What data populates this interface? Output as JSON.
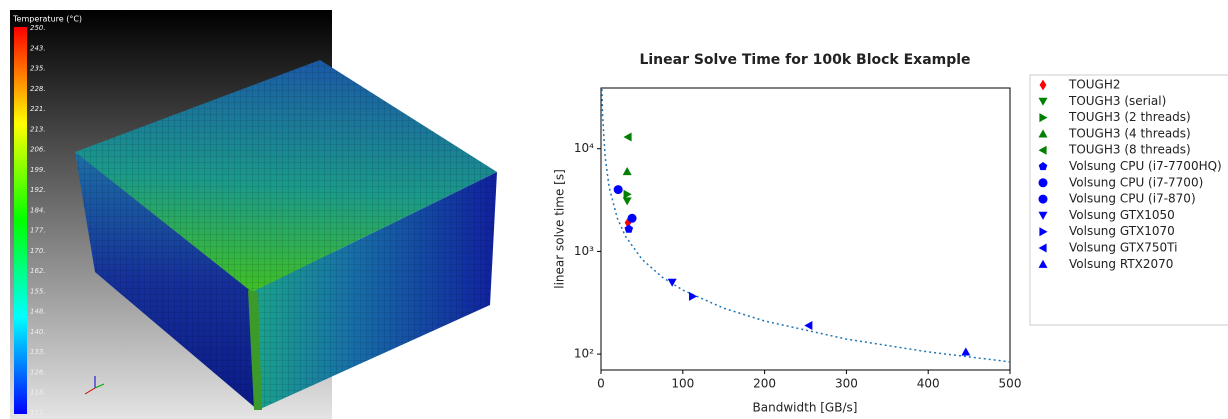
{
  "render": {
    "colorbar": {
      "title": "Temperature (°C)",
      "labels": [
        "250.",
        "243.",
        "235.",
        "228.",
        "221.",
        "213.",
        "206.",
        "199.",
        "192.",
        "184.",
        "177.",
        "170.",
        "162.",
        "155.",
        "148.",
        "140.",
        "133.",
        "126.",
        "118.",
        "111."
      ]
    }
  },
  "chart_data": {
    "type": "scatter",
    "title": "Linear Solve Time for 100k Block Example",
    "x_label": "Bandwidth [GB/s]",
    "y_label": "linear solve time [s]",
    "xlim": [
      0,
      500
    ],
    "xticks": [
      0,
      100,
      200,
      300,
      400,
      500
    ],
    "ylim": [
      70,
      39000
    ],
    "y_scale": "log",
    "yticks": [
      {
        "value": 100,
        "label": "10²"
      },
      {
        "value": 1000,
        "label": "10³"
      },
      {
        "value": 10000,
        "label": "10⁴"
      }
    ],
    "legend": "outside-right",
    "series": [
      {
        "name": "TOUGH2",
        "color": "#ff0000",
        "marker": "diamond",
        "x": [
          33
        ],
        "values": [
          1900
        ]
      },
      {
        "name": "TOUGH3 (serial)",
        "color": "#008000",
        "marker": "down",
        "x": [
          32
        ],
        "values": [
          3100
        ]
      },
      {
        "name": "TOUGH3 (2 threads)",
        "color": "#008000",
        "marker": "right",
        "x": [
          32
        ],
        "values": [
          3600
        ]
      },
      {
        "name": "TOUGH3 (4 threads)",
        "color": "#008000",
        "marker": "up",
        "x": [
          32
        ],
        "values": [
          6000
        ]
      },
      {
        "name": "TOUGH3 (8 threads)",
        "color": "#008000",
        "marker": "left",
        "x": [
          33
        ],
        "values": [
          13000
        ]
      },
      {
        "name": "Volsung CPU (i7-7700HQ)",
        "color": "#0000ff",
        "marker": "pentagon",
        "x": [
          34
        ],
        "values": [
          1650
        ]
      },
      {
        "name": "Volsung CPU (i7-7700)",
        "color": "#0000ff",
        "marker": "circle",
        "x": [
          21
        ],
        "values": [
          4000
        ]
      },
      {
        "name": "Volsung CPU (i7-870)",
        "color": "#0000ff",
        "marker": "circle",
        "x": [
          38
        ],
        "values": [
          2100
        ]
      },
      {
        "name": "Volsung GTX1050",
        "color": "#0000ff",
        "marker": "down",
        "x": [
          87
        ],
        "values": [
          500
        ]
      },
      {
        "name": "Volsung GTX1070",
        "color": "#0000ff",
        "marker": "right",
        "x": [
          112
        ],
        "values": [
          365
        ]
      },
      {
        "name": "Volsung GTX750Ti",
        "color": "#0000ff",
        "marker": "left",
        "x": [
          254
        ],
        "values": [
          190
        ]
      },
      {
        "name": "Volsung RTX2070",
        "color": "#0000ff",
        "marker": "up",
        "x": [
          446
        ],
        "values": [
          105
        ]
      }
    ],
    "trend_line": {
      "color": "#1f77b4",
      "x": [
        1.1,
        2,
        5,
        10,
        20,
        30,
        50,
        75,
        100,
        150,
        200,
        300,
        400,
        500
      ],
      "values": [
        38000,
        21000,
        8400,
        4200,
        2100,
        1400,
        840,
        560,
        420,
        280,
        210,
        140,
        105,
        84
      ]
    }
  }
}
